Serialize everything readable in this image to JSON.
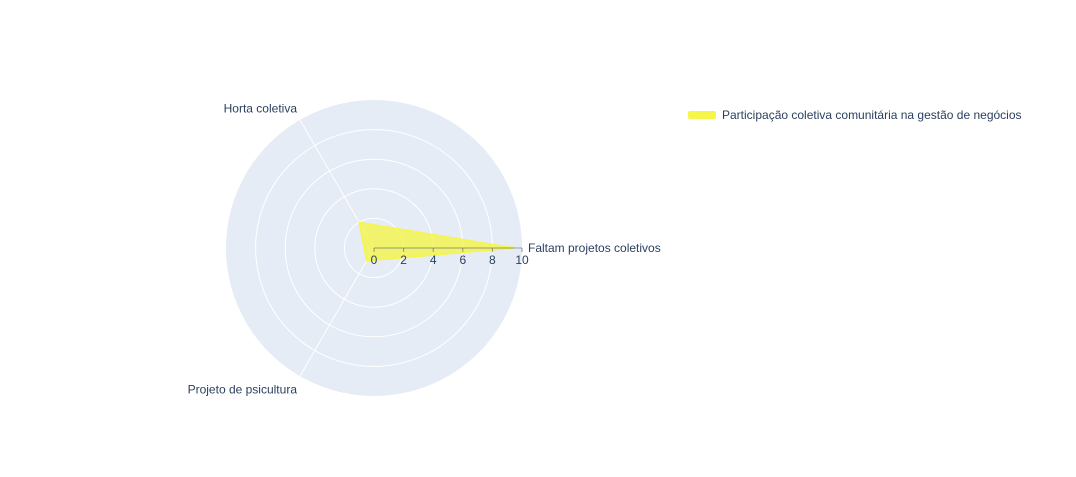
{
  "chart_data": {
    "type": "radar",
    "categories": [
      "Faltam projetos coletivos",
      "Horta coletiva",
      "Projeto de psicultura"
    ],
    "angles_deg": [
      0,
      120,
      240
    ],
    "series": [
      {
        "name": "Participação coletiva comunitária na gestão de negócios",
        "values": [
          9.5,
          2,
          1
        ],
        "color": "#f5f54a",
        "fill_opacity": 0.8
      }
    ],
    "radial_range": [
      0,
      10
    ],
    "radial_ticks": [
      "0",
      "2",
      "4",
      "6",
      "8",
      "10"
    ],
    "radial_tick_values": [
      0,
      2,
      4,
      6,
      8,
      10
    ],
    "legend_position": "top-right",
    "grid": true
  },
  "colors": {
    "polar_bg": "#e5ecf6",
    "grid": "#ffffff",
    "text": "#2a3f5f"
  }
}
